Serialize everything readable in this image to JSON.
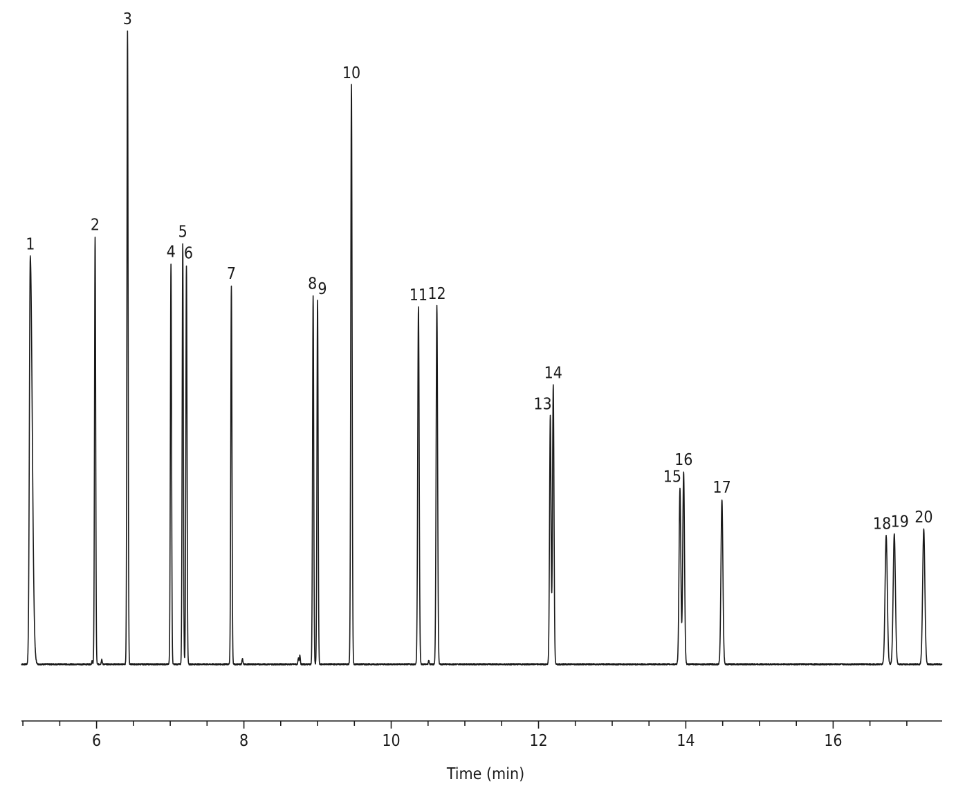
{
  "chart_data": {
    "type": "line",
    "xlabel": "Time (min)",
    "ylabel": "",
    "xlim": [
      4.98,
      17.48
    ],
    "ylim": [
      0,
      100
    ],
    "x_ticks": [
      6,
      8,
      10,
      12,
      14,
      16
    ],
    "x_minor_step": 0.5,
    "grid": false,
    "line_color": "#1a1a1a",
    "peaks": [
      {
        "label": "1",
        "rt": 5.1,
        "height": 64.4,
        "width": 0.012,
        "tail": true
      },
      {
        "label": "2",
        "rt": 5.98,
        "height": 67.5,
        "width": 0.008
      },
      {
        "label": "3",
        "rt": 6.42,
        "height": 100.0,
        "width": 0.008
      },
      {
        "label": "4",
        "rt": 7.01,
        "height": 63.2,
        "width": 0.008
      },
      {
        "label": "5",
        "rt": 7.17,
        "height": 66.4,
        "width": 0.008
      },
      {
        "label": "6",
        "rt": 7.22,
        "height": 63.0,
        "width": 0.008
      },
      {
        "label": "7",
        "rt": 7.83,
        "height": 59.8,
        "width": 0.008
      },
      {
        "label": "8",
        "rt": 8.94,
        "height": 58.2,
        "width": 0.008
      },
      {
        "label": "9",
        "rt": 9.0,
        "height": 57.4,
        "width": 0.008
      },
      {
        "label": "10",
        "rt": 9.46,
        "height": 91.5,
        "width": 0.009
      },
      {
        "label": "11",
        "rt": 10.37,
        "height": 56.4,
        "width": 0.01
      },
      {
        "label": "12",
        "rt": 10.62,
        "height": 56.6,
        "width": 0.01
      },
      {
        "label": "13",
        "rt": 12.16,
        "height": 39.2,
        "width": 0.01
      },
      {
        "label": "14",
        "rt": 12.2,
        "height": 44.1,
        "width": 0.01
      },
      {
        "label": "15",
        "rt": 13.92,
        "height": 27.7,
        "width": 0.012
      },
      {
        "label": "16",
        "rt": 13.97,
        "height": 30.4,
        "width": 0.012
      },
      {
        "label": "17",
        "rt": 14.49,
        "height": 26.0,
        "width": 0.013
      },
      {
        "label": "18",
        "rt": 16.72,
        "height": 20.3,
        "width": 0.015
      },
      {
        "label": "19",
        "rt": 16.83,
        "height": 20.6,
        "width": 0.015
      },
      {
        "label": "20",
        "rt": 17.23,
        "height": 21.3,
        "width": 0.015
      }
    ],
    "minor_features": [
      {
        "rt": 5.94,
        "height": 0.5
      },
      {
        "rt": 6.07,
        "height": 0.8
      },
      {
        "rt": 7.98,
        "height": 0.9
      },
      {
        "rt": 8.74,
        "height": 0.9
      },
      {
        "rt": 8.76,
        "height": 1.5
      },
      {
        "rt": 10.51,
        "height": 0.6
      }
    ]
  }
}
